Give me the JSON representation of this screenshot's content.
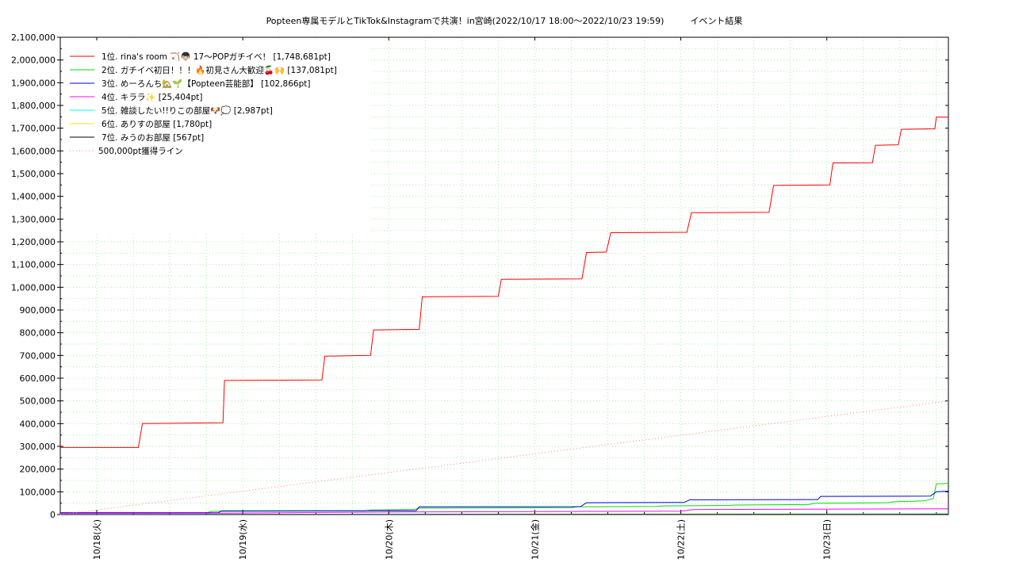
{
  "chart_data": {
    "type": "line",
    "title": "Popteen専属モデルとTikTok&Instagramで共演！in宮崎(2022/10/17 18:00～2022/10/23 19:59)　　　イベント結果",
    "xlabel": "",
    "ylabel": "",
    "x_ticks": [
      "10/18(火)",
      "10/19(水)",
      "10/20(木)",
      "10/21(金)",
      "10/22(土)",
      "10/23(日)"
    ],
    "xlim": [
      "2022-10-17T18:00",
      "2022-10-23T19:59"
    ],
    "ylim": [
      0,
      2100000
    ],
    "y_ticks": [
      "0",
      "100,000",
      "200,000",
      "300,000",
      "400,000",
      "500,000",
      "600,000",
      "700,000",
      "800,000",
      "900,000",
      "1,000,000",
      "1,100,000",
      "1,200,000",
      "1,300,000",
      "1,400,000",
      "1,500,000",
      "1,600,000",
      "1,700,000",
      "1,800,000",
      "1,900,000",
      "2,000,000",
      "2,100,000"
    ],
    "grid": true,
    "legend_position": "top-left",
    "series": [
      {
        "name": "1位. rina's room 🏹👦🏻 17〜POPガチイベ！ [1,748,681pt]",
        "color": "#ff0000",
        "style": "solid",
        "points": [
          [
            "2022-10-17T18:00",
            295000
          ],
          [
            "2022-10-18T06:50",
            295000
          ],
          [
            "2022-10-18T07:30",
            400000
          ],
          [
            "2022-10-18T20:45",
            404000
          ],
          [
            "2022-10-18T21:00",
            590000
          ],
          [
            "2022-10-19T13:00",
            592000
          ],
          [
            "2022-10-19T13:30",
            697000
          ],
          [
            "2022-10-19T21:00",
            700000
          ],
          [
            "2022-10-19T21:30",
            812000
          ],
          [
            "2022-10-20T05:00",
            815000
          ],
          [
            "2022-10-20T05:30",
            958000
          ],
          [
            "2022-10-20T18:00",
            960000
          ],
          [
            "2022-10-20T18:30",
            1035000
          ],
          [
            "2022-10-21T07:45",
            1037000
          ],
          [
            "2022-10-21T08:30",
            1153000
          ],
          [
            "2022-10-21T11:45",
            1155000
          ],
          [
            "2022-10-21T12:30",
            1240000
          ],
          [
            "2022-10-22T01:00",
            1242000
          ],
          [
            "2022-10-22T01:45",
            1328000
          ],
          [
            "2022-10-22T14:30",
            1330000
          ],
          [
            "2022-10-22T15:15",
            1448000
          ],
          [
            "2022-10-23T00:30",
            1450000
          ],
          [
            "2022-10-23T01:00",
            1547000
          ],
          [
            "2022-10-23T07:30",
            1548000
          ],
          [
            "2022-10-23T08:00",
            1625000
          ],
          [
            "2022-10-23T11:45",
            1627000
          ],
          [
            "2022-10-23T12:15",
            1695000
          ],
          [
            "2022-10-23T17:45",
            1697000
          ],
          [
            "2022-10-23T18:00",
            1748681
          ],
          [
            "2022-10-23T19:59",
            1748681
          ]
        ]
      },
      {
        "name": "2位. ガチイベ初日！！！🔥初見さん大歓迎🍒🙌 [137,081pt]",
        "color": "#00dd00",
        "style": "solid",
        "points": [
          [
            "2022-10-17T18:00",
            8000
          ],
          [
            "2022-10-18T18:00",
            8000
          ],
          [
            "2022-10-18T19:00",
            14000
          ],
          [
            "2022-10-19T20:00",
            16000
          ],
          [
            "2022-10-19T21:00",
            20000
          ],
          [
            "2022-10-20T04:00",
            22000
          ],
          [
            "2022-10-20T05:00",
            28000
          ],
          [
            "2022-10-21T06:00",
            30000
          ],
          [
            "2022-10-21T07:00",
            34000
          ],
          [
            "2022-10-21T20:00",
            36000
          ],
          [
            "2022-10-21T21:00",
            38000
          ],
          [
            "2022-10-22T08:00",
            40000
          ],
          [
            "2022-10-22T09:00",
            42000
          ],
          [
            "2022-10-22T21:00",
            44000
          ],
          [
            "2022-10-22T22:00",
            50000
          ],
          [
            "2022-10-23T10:00",
            52000
          ],
          [
            "2022-10-23T11:00",
            56000
          ],
          [
            "2022-10-23T16:00",
            60000
          ],
          [
            "2022-10-23T17:30",
            70000
          ],
          [
            "2022-10-23T18:00",
            135000
          ],
          [
            "2022-10-23T19:59",
            137081
          ]
        ]
      },
      {
        "name": "3位. めーろんち🏡🌱【Popteen芸能部】 [102,866pt]",
        "color": "#0000dd",
        "style": "solid",
        "points": [
          [
            "2022-10-17T18:00",
            8000
          ],
          [
            "2022-10-18T20:00",
            8000
          ],
          [
            "2022-10-18T20:30",
            16000
          ],
          [
            "2022-10-20T04:30",
            17000
          ],
          [
            "2022-10-20T05:00",
            34000
          ],
          [
            "2022-10-21T07:30",
            35000
          ],
          [
            "2022-10-21T08:30",
            52000
          ],
          [
            "2022-10-22T00:30",
            53000
          ],
          [
            "2022-10-22T01:30",
            65000
          ],
          [
            "2022-10-22T22:30",
            66000
          ],
          [
            "2022-10-22T23:00",
            80000
          ],
          [
            "2022-10-23T17:00",
            81000
          ],
          [
            "2022-10-23T18:00",
            100000
          ],
          [
            "2022-10-23T19:59",
            102866
          ]
        ]
      },
      {
        "name": "4位. キララ✨ [25,404pt]",
        "color": "#ff00ff",
        "style": "solid",
        "points": [
          [
            "2022-10-17T18:00",
            5000
          ],
          [
            "2022-10-18T20:00",
            6000
          ],
          [
            "2022-10-19T06:00",
            8000
          ],
          [
            "2022-10-20T06:00",
            12000
          ],
          [
            "2022-10-21T10:00",
            14000
          ],
          [
            "2022-10-22T00:00",
            15000
          ],
          [
            "2022-10-22T02:00",
            22000
          ],
          [
            "2022-10-23T19:59",
            25404
          ]
        ]
      },
      {
        "name": "5位. 雑談したい!!りこの部屋🐶💭 [2,987pt]",
        "color": "#00ffff",
        "style": "solid",
        "points": [
          [
            "2022-10-17T18:00",
            0
          ],
          [
            "2022-10-20T00:00",
            1000
          ],
          [
            "2022-10-23T19:59",
            2987
          ]
        ]
      },
      {
        "name": "6位. ありすの部屋 [1,780pt]",
        "color": "#eeee00",
        "style": "solid",
        "points": [
          [
            "2022-10-17T18:00",
            0
          ],
          [
            "2022-10-21T00:00",
            800
          ],
          [
            "2022-10-23T19:59",
            1780
          ]
        ]
      },
      {
        "name": "7位. みうのお部屋 [567pt]",
        "color": "#000000",
        "style": "solid",
        "points": [
          [
            "2022-10-17T18:00",
            0
          ],
          [
            "2022-10-22T00:00",
            300
          ],
          [
            "2022-10-23T19:59",
            567
          ]
        ]
      },
      {
        "name": "500,000pt獲得ライン",
        "color": "#ff8080",
        "style": "dotted",
        "points": [
          [
            "2022-10-17T18:00",
            0
          ],
          [
            "2022-10-23T19:59",
            500000
          ]
        ]
      }
    ]
  }
}
